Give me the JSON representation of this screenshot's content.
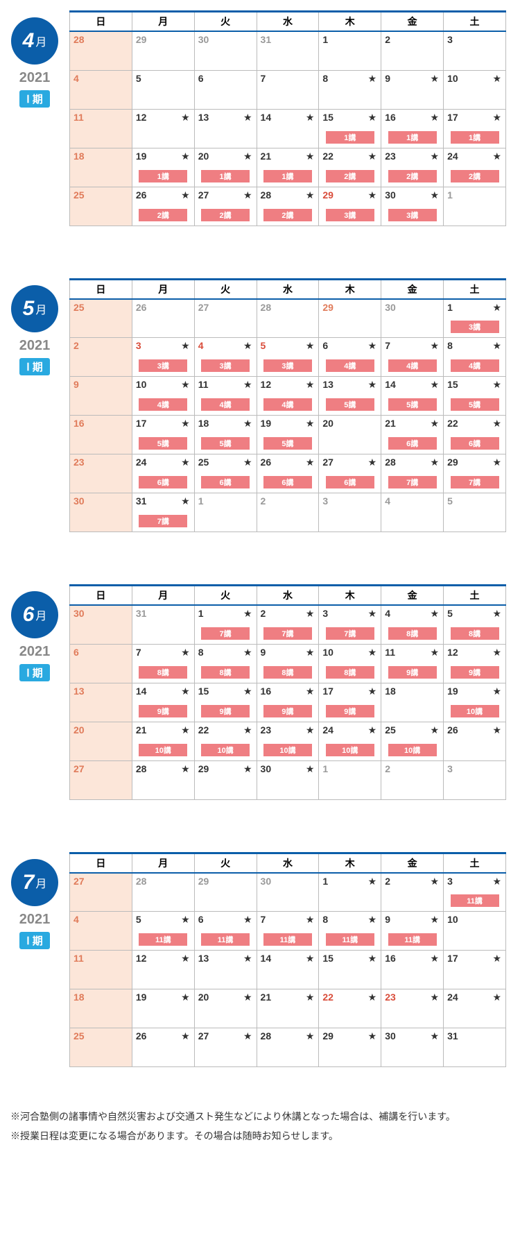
{
  "year": "2021",
  "period": "Ⅰ 期",
  "day_headers": [
    "日",
    "月",
    "火",
    "水",
    "木",
    "金",
    "土"
  ],
  "colors": {
    "primary": "#0b5ea9",
    "period_badge": "#29a9e0",
    "sunday_bg": "#fce6d9",
    "lecture_badge": "#ef7e82",
    "gray_text": "#999",
    "red_text": "#d94c3a"
  },
  "months": [
    {
      "num": "4",
      "suffix": "月",
      "weeks": [
        [
          {
            "d": "28",
            "cls": "sun-red",
            "sun": true
          },
          {
            "d": "29",
            "cls": "gray"
          },
          {
            "d": "30",
            "cls": "gray"
          },
          {
            "d": "31",
            "cls": "gray"
          },
          {
            "d": "1"
          },
          {
            "d": "2"
          },
          {
            "d": "3"
          }
        ],
        [
          {
            "d": "4",
            "cls": "sun-red",
            "sun": true
          },
          {
            "d": "5"
          },
          {
            "d": "6"
          },
          {
            "d": "7"
          },
          {
            "d": "8",
            "star": true
          },
          {
            "d": "9",
            "star": true
          },
          {
            "d": "10",
            "star": true
          }
        ],
        [
          {
            "d": "11",
            "cls": "sun-red",
            "sun": true
          },
          {
            "d": "12",
            "star": true
          },
          {
            "d": "13",
            "star": true
          },
          {
            "d": "14",
            "star": true
          },
          {
            "d": "15",
            "star": true,
            "b": "1講"
          },
          {
            "d": "16",
            "star": true,
            "b": "1講"
          },
          {
            "d": "17",
            "star": true,
            "b": "1講"
          }
        ],
        [
          {
            "d": "18",
            "cls": "sun-red",
            "sun": true
          },
          {
            "d": "19",
            "star": true,
            "b": "1講"
          },
          {
            "d": "20",
            "star": true,
            "b": "1講"
          },
          {
            "d": "21",
            "star": true,
            "b": "1講"
          },
          {
            "d": "22",
            "star": true,
            "b": "2講"
          },
          {
            "d": "23",
            "star": true,
            "b": "2講"
          },
          {
            "d": "24",
            "star": true,
            "b": "2講"
          }
        ],
        [
          {
            "d": "25",
            "cls": "sun-red",
            "sun": true
          },
          {
            "d": "26",
            "star": true,
            "b": "2講"
          },
          {
            "d": "27",
            "star": true,
            "b": "2講"
          },
          {
            "d": "28",
            "star": true,
            "b": "2講"
          },
          {
            "d": "29",
            "cls": "red",
            "star": true,
            "b": "3講"
          },
          {
            "d": "30",
            "star": true,
            "b": "3講"
          },
          {
            "d": "1",
            "cls": "gray"
          }
        ]
      ]
    },
    {
      "num": "5",
      "suffix": "月",
      "weeks": [
        [
          {
            "d": "25",
            "cls": "sun-red",
            "sun": true
          },
          {
            "d": "26",
            "cls": "gray"
          },
          {
            "d": "27",
            "cls": "gray"
          },
          {
            "d": "28",
            "cls": "gray"
          },
          {
            "d": "29",
            "cls": "sun-red"
          },
          {
            "d": "30",
            "cls": "gray"
          },
          {
            "d": "1",
            "star": true,
            "b": "3講"
          }
        ],
        [
          {
            "d": "2",
            "cls": "sun-red",
            "sun": true
          },
          {
            "d": "3",
            "cls": "red",
            "star": true,
            "b": "3講"
          },
          {
            "d": "4",
            "cls": "red",
            "star": true,
            "b": "3講"
          },
          {
            "d": "5",
            "cls": "red",
            "star": true,
            "b": "3講"
          },
          {
            "d": "6",
            "star": true,
            "b": "4講"
          },
          {
            "d": "7",
            "star": true,
            "b": "4講"
          },
          {
            "d": "8",
            "star": true,
            "b": "4講"
          }
        ],
        [
          {
            "d": "9",
            "cls": "sun-red",
            "sun": true
          },
          {
            "d": "10",
            "star": true,
            "b": "4講"
          },
          {
            "d": "11",
            "star": true,
            "b": "4講"
          },
          {
            "d": "12",
            "star": true,
            "b": "4講"
          },
          {
            "d": "13",
            "star": true,
            "b": "5講"
          },
          {
            "d": "14",
            "star": true,
            "b": "5講"
          },
          {
            "d": "15",
            "star": true,
            "b": "5講"
          }
        ],
        [
          {
            "d": "16",
            "cls": "sun-red",
            "sun": true
          },
          {
            "d": "17",
            "star": true,
            "b": "5講"
          },
          {
            "d": "18",
            "star": true,
            "b": "5講"
          },
          {
            "d": "19",
            "star": true,
            "b": "5講"
          },
          {
            "d": "20"
          },
          {
            "d": "21",
            "star": true,
            "b": "6講"
          },
          {
            "d": "22",
            "star": true,
            "b": "6講"
          }
        ],
        [
          {
            "d": "23",
            "cls": "sun-red",
            "sun": true
          },
          {
            "d": "24",
            "star": true,
            "b": "6講"
          },
          {
            "d": "25",
            "star": true,
            "b": "6講"
          },
          {
            "d": "26",
            "star": true,
            "b": "6講"
          },
          {
            "d": "27",
            "star": true,
            "b": "6講"
          },
          {
            "d": "28",
            "star": true,
            "b": "7講"
          },
          {
            "d": "29",
            "star": true,
            "b": "7講"
          }
        ],
        [
          {
            "d": "30",
            "cls": "sun-red",
            "sun": true
          },
          {
            "d": "31",
            "star": true,
            "b": "7講"
          },
          {
            "d": "1",
            "cls": "gray"
          },
          {
            "d": "2",
            "cls": "gray"
          },
          {
            "d": "3",
            "cls": "gray"
          },
          {
            "d": "4",
            "cls": "gray"
          },
          {
            "d": "5",
            "cls": "gray"
          }
        ]
      ]
    },
    {
      "num": "6",
      "suffix": "月",
      "weeks": [
        [
          {
            "d": "30",
            "cls": "sun-red",
            "sun": true
          },
          {
            "d": "31",
            "cls": "gray"
          },
          {
            "d": "1",
            "star": true,
            "b": "7講"
          },
          {
            "d": "2",
            "star": true,
            "b": "7講"
          },
          {
            "d": "3",
            "star": true,
            "b": "7講"
          },
          {
            "d": "4",
            "star": true,
            "b": "8講"
          },
          {
            "d": "5",
            "star": true,
            "b": "8講"
          }
        ],
        [
          {
            "d": "6",
            "cls": "sun-red",
            "sun": true
          },
          {
            "d": "7",
            "star": true,
            "b": "8講"
          },
          {
            "d": "8",
            "star": true,
            "b": "8講"
          },
          {
            "d": "9",
            "star": true,
            "b": "8講"
          },
          {
            "d": "10",
            "star": true,
            "b": "8講"
          },
          {
            "d": "11",
            "star": true,
            "b": "9講"
          },
          {
            "d": "12",
            "star": true,
            "b": "9講"
          }
        ],
        [
          {
            "d": "13",
            "cls": "sun-red",
            "sun": true
          },
          {
            "d": "14",
            "star": true,
            "b": "9講"
          },
          {
            "d": "15",
            "star": true,
            "b": "9講"
          },
          {
            "d": "16",
            "star": true,
            "b": "9講"
          },
          {
            "d": "17",
            "star": true,
            "b": "9講"
          },
          {
            "d": "18"
          },
          {
            "d": "19",
            "star": true,
            "b": "10講"
          }
        ],
        [
          {
            "d": "20",
            "cls": "sun-red",
            "sun": true
          },
          {
            "d": "21",
            "star": true,
            "b": "10講"
          },
          {
            "d": "22",
            "star": true,
            "b": "10講"
          },
          {
            "d": "23",
            "star": true,
            "b": "10講"
          },
          {
            "d": "24",
            "star": true,
            "b": "10講"
          },
          {
            "d": "25",
            "star": true,
            "b": "10講"
          },
          {
            "d": "26",
            "star": true
          }
        ],
        [
          {
            "d": "27",
            "cls": "sun-red",
            "sun": true
          },
          {
            "d": "28",
            "star": true
          },
          {
            "d": "29",
            "star": true
          },
          {
            "d": "30",
            "star": true
          },
          {
            "d": "1",
            "cls": "gray"
          },
          {
            "d": "2",
            "cls": "gray"
          },
          {
            "d": "3",
            "cls": "gray"
          }
        ]
      ]
    },
    {
      "num": "7",
      "suffix": "月",
      "weeks": [
        [
          {
            "d": "27",
            "cls": "sun-red",
            "sun": true
          },
          {
            "d": "28",
            "cls": "gray"
          },
          {
            "d": "29",
            "cls": "gray"
          },
          {
            "d": "30",
            "cls": "gray"
          },
          {
            "d": "1",
            "star": true
          },
          {
            "d": "2",
            "star": true
          },
          {
            "d": "3",
            "star": true,
            "b": "11講"
          }
        ],
        [
          {
            "d": "4",
            "cls": "sun-red",
            "sun": true
          },
          {
            "d": "5",
            "star": true,
            "b": "11講"
          },
          {
            "d": "6",
            "star": true,
            "b": "11講"
          },
          {
            "d": "7",
            "star": true,
            "b": "11講"
          },
          {
            "d": "8",
            "star": true,
            "b": "11講"
          },
          {
            "d": "9",
            "star": true,
            "b": "11講"
          },
          {
            "d": "10"
          }
        ],
        [
          {
            "d": "11",
            "cls": "sun-red",
            "sun": true
          },
          {
            "d": "12",
            "star": true
          },
          {
            "d": "13",
            "star": true
          },
          {
            "d": "14",
            "star": true
          },
          {
            "d": "15",
            "star": true
          },
          {
            "d": "16",
            "star": true
          },
          {
            "d": "17",
            "star": true
          }
        ],
        [
          {
            "d": "18",
            "cls": "sun-red",
            "sun": true
          },
          {
            "d": "19",
            "star": true
          },
          {
            "d": "20",
            "star": true
          },
          {
            "d": "21",
            "star": true
          },
          {
            "d": "22",
            "cls": "red",
            "star": true
          },
          {
            "d": "23",
            "cls": "red",
            "star": true
          },
          {
            "d": "24",
            "star": true
          }
        ],
        [
          {
            "d": "25",
            "cls": "sun-red",
            "sun": true
          },
          {
            "d": "26",
            "star": true
          },
          {
            "d": "27",
            "star": true
          },
          {
            "d": "28",
            "star": true
          },
          {
            "d": "29",
            "star": true
          },
          {
            "d": "30",
            "star": true
          },
          {
            "d": "31"
          }
        ]
      ]
    }
  ],
  "notes": [
    "※河合塾側の諸事情や自然災害および交通スト発生などにより休講となった場合は、補講を行います。",
    "※授業日程は変更になる場合があります。その場合は随時お知らせします。"
  ]
}
